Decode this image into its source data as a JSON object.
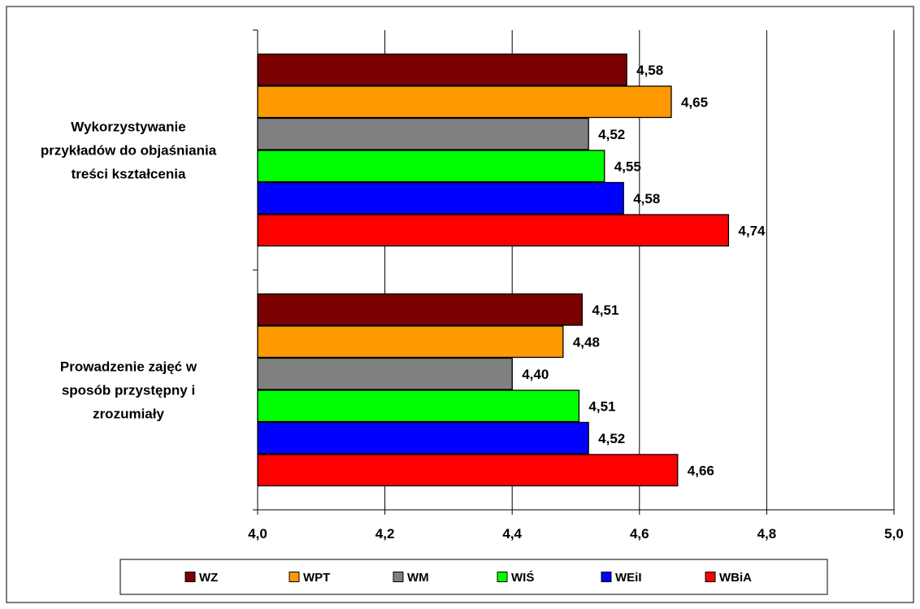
{
  "chart_data": {
    "type": "bar",
    "orientation": "horizontal",
    "categories": [
      [
        "Wykorzystywanie",
        "przykładów do objaśniania",
        "treści kształcenia"
      ],
      [
        "Prowadzenie zajęć w",
        "sposób przystępny i",
        "zrozumiały"
      ]
    ],
    "series": [
      {
        "name": "WZ",
        "color": "#7b0000",
        "values": [
          4.58,
          4.51
        ],
        "labels": [
          "4,58",
          "4,51"
        ]
      },
      {
        "name": "WPT",
        "color": "#ff9900",
        "values": [
          4.65,
          4.48
        ],
        "labels": [
          "4,65",
          "4,48"
        ]
      },
      {
        "name": "WM",
        "color": "#808080",
        "values": [
          4.52,
          4.4
        ],
        "labels": [
          "4,52",
          "4,40"
        ]
      },
      {
        "name": "WIŚ",
        "color": "#00ff00",
        "values": [
          4.545,
          4.505
        ],
        "labels": [
          "4,55",
          "4,51"
        ]
      },
      {
        "name": "WEiI",
        "color": "#0000ff",
        "values": [
          4.575,
          4.52
        ],
        "labels": [
          "4,58",
          "4,52"
        ]
      },
      {
        "name": "WBiA",
        "color": "#ff0000",
        "values": [
          4.74,
          4.66
        ],
        "labels": [
          "4,74",
          "4,66"
        ]
      }
    ],
    "xlim": [
      4.0,
      5.0
    ],
    "xticks": [
      4.0,
      4.2,
      4.4,
      4.6,
      4.8,
      5.0
    ],
    "xtick_labels": [
      "4,0",
      "4,2",
      "4,4",
      "4,6",
      "4,8",
      "5,0"
    ],
    "grid": "vertical",
    "legend": "bottom",
    "title": "",
    "xlabel": "",
    "ylabel": ""
  }
}
